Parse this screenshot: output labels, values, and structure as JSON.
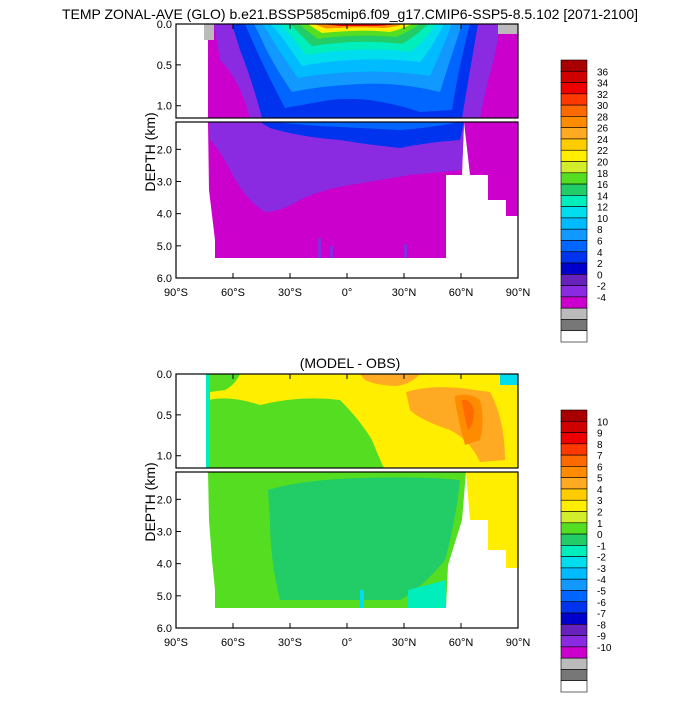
{
  "title": "TEMP ZONAL-AVE (GLO) b.e21.BSSP585cmip6.f09_g17.CMIP6-SSP5-8.5.102 [2071-2100]",
  "chart_data": [
    {
      "type": "heatmap",
      "title": "",
      "xlabel": "",
      "ylabel": "DEPTH (km)",
      "x_ticks": [
        "90°S",
        "60°S",
        "30°S",
        "0°",
        "30°N",
        "60°N",
        "90°N"
      ],
      "x_values": [
        -90,
        -60,
        -30,
        0,
        30,
        60,
        90
      ],
      "y_ticks_upper": [
        "0.0",
        "0.5",
        "1.0"
      ],
      "y_values_upper": [
        0.0,
        0.5,
        1.0
      ],
      "y_ticks_lower": [
        "2.0",
        "3.0",
        "4.0",
        "5.0",
        "6.0"
      ],
      "y_values_lower": [
        2.0,
        3.0,
        4.0,
        5.0,
        6.0
      ],
      "xlim": [
        -90,
        90
      ],
      "ylim_upper": [
        0,
        1.15
      ],
      "ylim_lower": [
        1.15,
        6.0
      ],
      "colorbar_labels": [
        "36",
        "34",
        "32",
        "30",
        "28",
        "26",
        "24",
        "22",
        "20",
        "18",
        "16",
        "14",
        "12",
        "10",
        "8",
        "6",
        "4",
        "2",
        "0",
        "-2",
        "-4"
      ],
      "colorbar_colors": [
        "#a80000",
        "#d00000",
        "#ee0000",
        "#ff3800",
        "#ff6a00",
        "#ff8c00",
        "#ffaa22",
        "#ffcc00",
        "#ffee00",
        "#d2ee2a",
        "#55dd22",
        "#22cc66",
        "#00eebb",
        "#00ddee",
        "#00bbff",
        "#1199ff",
        "#0066ff",
        "#0033ee",
        "#0000cc",
        "#6622bb",
        "#8a2be2",
        "#cc00cc",
        "#bbbbbb",
        "#777777",
        "#ffffff"
      ]
    },
    {
      "type": "heatmap",
      "title": "(MODEL - OBS)",
      "xlabel": "",
      "ylabel": "DEPTH (km)",
      "x_ticks": [
        "90°S",
        "60°S",
        "30°S",
        "0°",
        "30°N",
        "60°N",
        "90°N"
      ],
      "x_values": [
        -90,
        -60,
        -30,
        0,
        30,
        60,
        90
      ],
      "y_ticks_upper": [
        "0.0",
        "0.5",
        "1.0"
      ],
      "y_values_upper": [
        0.0,
        0.5,
        1.0
      ],
      "y_ticks_lower": [
        "2.0",
        "3.0",
        "4.0",
        "5.0",
        "6.0"
      ],
      "y_values_lower": [
        2.0,
        3.0,
        4.0,
        5.0,
        6.0
      ],
      "xlim": [
        -90,
        90
      ],
      "ylim_upper": [
        0,
        1.15
      ],
      "ylim_lower": [
        1.15,
        6.0
      ],
      "colorbar_labels": [
        "10",
        "9",
        "8",
        "7",
        "6",
        "5",
        "4",
        "3",
        "2",
        "1",
        "0",
        "-1",
        "-2",
        "-3",
        "-4",
        "-5",
        "-6",
        "-7",
        "-8",
        "-9",
        "-10"
      ],
      "colorbar_colors": [
        "#a80000",
        "#d00000",
        "#ee0000",
        "#ff3800",
        "#ff6a00",
        "#ff8c00",
        "#ffaa22",
        "#ffcc00",
        "#ffee00",
        "#d2ee2a",
        "#55dd22",
        "#22cc66",
        "#00eebb",
        "#00ddee",
        "#00bbff",
        "#1199ff",
        "#0066ff",
        "#0033ee",
        "#0000cc",
        "#6622bb",
        "#8a2be2",
        "#cc00cc",
        "#bbbbbb",
        "#777777",
        "#ffffff"
      ]
    }
  ]
}
